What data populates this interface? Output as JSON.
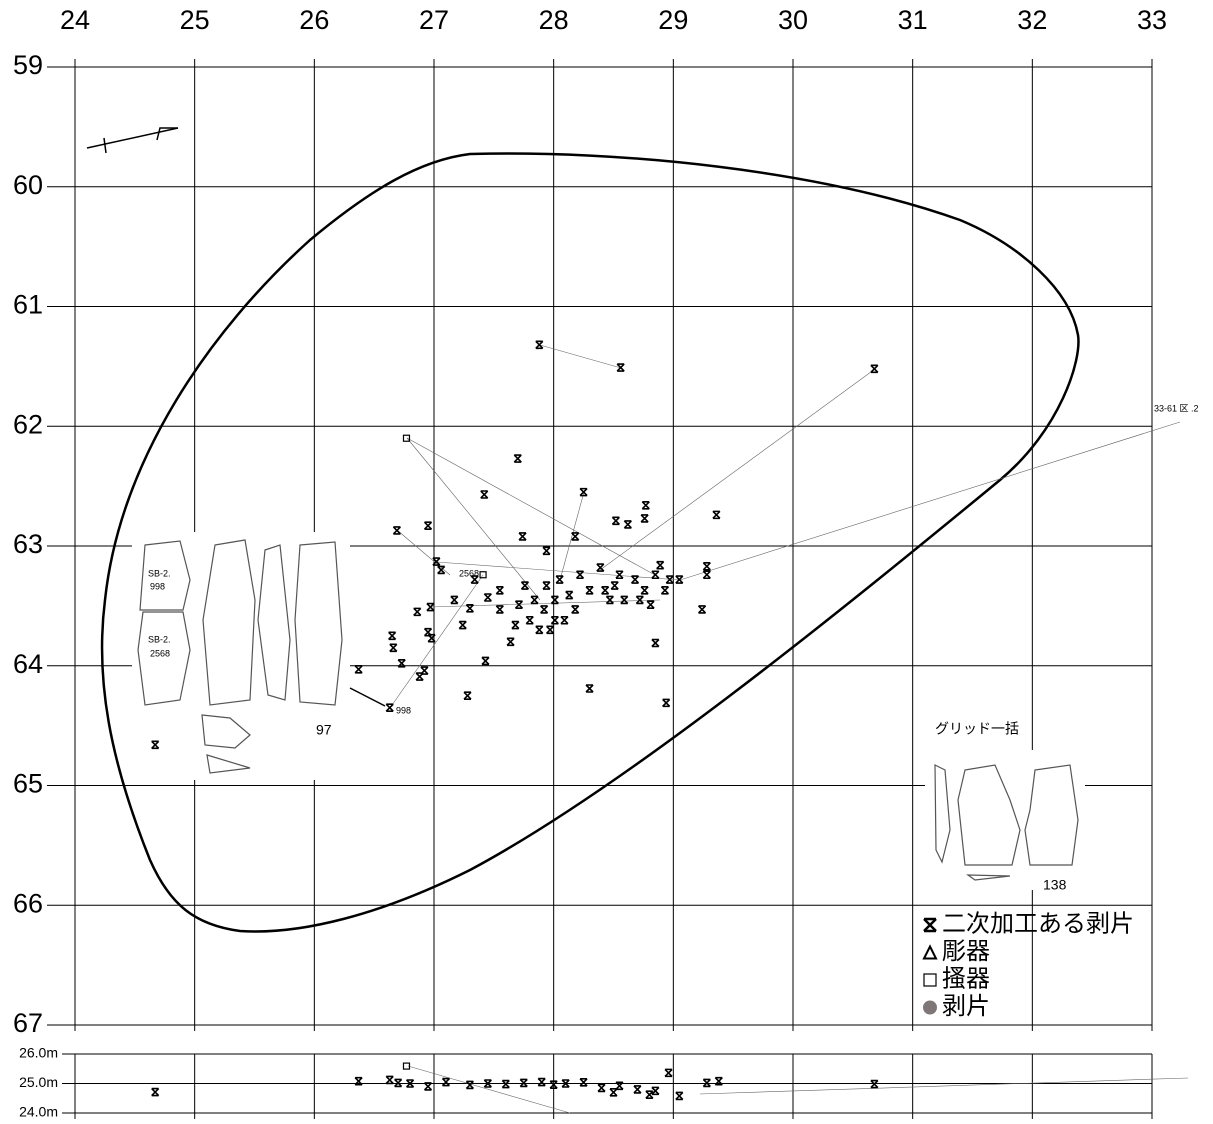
{
  "chart_data": [
    {
      "type": "scatter",
      "xlim": [
        24,
        33
      ],
      "xticks": [
        24,
        25,
        26,
        27,
        28,
        29,
        30,
        31,
        32,
        33
      ],
      "ylim": [
        67,
        59
      ],
      "yticks": [
        59,
        60,
        61,
        62,
        63,
        64,
        65,
        66,
        67
      ],
      "grid": true,
      "legend": "lower right",
      "series": [
        {
          "name": "二次加工ある剥片",
          "marker": "asterisk",
          "color": "#000000",
          "x": [
            27.88,
            28.56,
            30.68,
            27.7,
            28.25,
            27.42,
            29.36,
            28.77,
            28.76,
            28.52,
            28.62,
            26.69,
            26.95,
            27.74,
            28.18,
            27.94,
            27.02,
            27.06,
            29.28,
            29.28,
            29.24,
            26.65,
            26.66,
            26.73,
            26.37,
            26.88,
            26.92,
            27.43,
            27.64,
            27.28,
            28.3,
            28.94,
            28.85,
            26.63,
            24.67,
            26.86,
            26.97,
            26.95,
            26.98,
            27.17,
            27.3,
            27.24,
            27.45,
            27.55,
            27.68,
            27.76,
            27.84,
            27.92,
            27.94,
            28.01,
            28.05,
            28.13,
            28.22,
            28.3,
            28.39,
            28.43,
            28.51,
            28.55,
            28.59,
            28.68,
            28.76,
            28.85,
            28.89,
            28.93,
            28.97,
            29.05,
            27.88,
            27.8,
            28.01,
            27.97,
            28.18,
            28.09,
            28.47,
            28.72,
            28.81,
            27.34,
            27.55,
            27.71
          ],
          "y": [
            61.32,
            61.51,
            61.52,
            62.27,
            62.55,
            62.57,
            62.74,
            62.66,
            62.77,
            62.79,
            62.82,
            62.87,
            62.83,
            62.92,
            62.92,
            63.04,
            63.13,
            63.2,
            63.17,
            63.24,
            63.53,
            63.75,
            63.85,
            63.98,
            64.03,
            64.09,
            64.04,
            63.96,
            63.8,
            64.25,
            64.19,
            64.31,
            63.81,
            64.35,
            64.66,
            63.55,
            63.51,
            63.72,
            63.77,
            63.45,
            63.52,
            63.66,
            63.43,
            63.53,
            63.66,
            63.33,
            63.45,
            63.53,
            63.33,
            63.45,
            63.28,
            63.41,
            63.24,
            63.37,
            63.18,
            63.37,
            63.33,
            63.24,
            63.45,
            63.28,
            63.37,
            63.24,
            63.16,
            63.37,
            63.28,
            63.28,
            63.7,
            63.62,
            63.62,
            63.7,
            63.53,
            63.62,
            63.45,
            63.45,
            63.49,
            63.28,
            63.37,
            63.49
          ]
        },
        {
          "name": "彫器",
          "marker": "triangle",
          "color": "#000000",
          "x": [],
          "y": []
        },
        {
          "name": "搔器",
          "marker": "square",
          "color": "#000000",
          "x": [
            26.77,
            27.41
          ],
          "y": [
            62.1,
            63.24
          ]
        },
        {
          "name": "剥片",
          "marker": "circle",
          "color": "#7f7777",
          "x": [],
          "y": []
        }
      ],
      "annotations": [
        "SB-2.",
        "998",
        "SB-2.",
        "2568",
        "97",
        "998",
        "2568",
        "33-61 区 .2",
        "グリッド一括",
        "138"
      ]
    },
    {
      "type": "scatter",
      "xlim": [
        24,
        33
      ],
      "xticks": [
        24,
        25,
        26,
        27,
        28,
        29,
        30,
        31,
        32,
        33
      ],
      "ylim": [
        24,
        26
      ],
      "yticks": [
        {
          "value": 26,
          "label": "26.0m"
        },
        {
          "value": 25,
          "label": "25.0m"
        },
        {
          "value": 24,
          "label": "24.0m"
        }
      ],
      "series": [
        {
          "marker": "asterisk",
          "color": "#000000",
          "x": [
            24.67,
            26.37,
            26.63,
            26.7,
            26.8,
            26.95,
            27.1,
            27.3,
            27.45,
            27.6,
            27.75,
            27.9,
            28.0,
            28.1,
            28.25,
            28.4,
            28.55,
            28.7,
            28.85,
            28.96,
            29.05,
            29.28,
            29.38,
            30.68,
            28.5,
            28.8
          ],
          "y": [
            24.71,
            25.08,
            25.12,
            25.02,
            25.0,
            24.9,
            25.05,
            24.95,
            25.0,
            24.98,
            25.02,
            25.05,
            24.96,
            25.0,
            25.04,
            24.85,
            24.92,
            24.8,
            24.75,
            25.36,
            24.58,
            25.02,
            25.08,
            24.98,
            24.7,
            24.62
          ]
        },
        {
          "marker": "square",
          "color": "#000000",
          "x": [
            26.77
          ],
          "y": [
            25.59
          ]
        }
      ]
    }
  ]
}
